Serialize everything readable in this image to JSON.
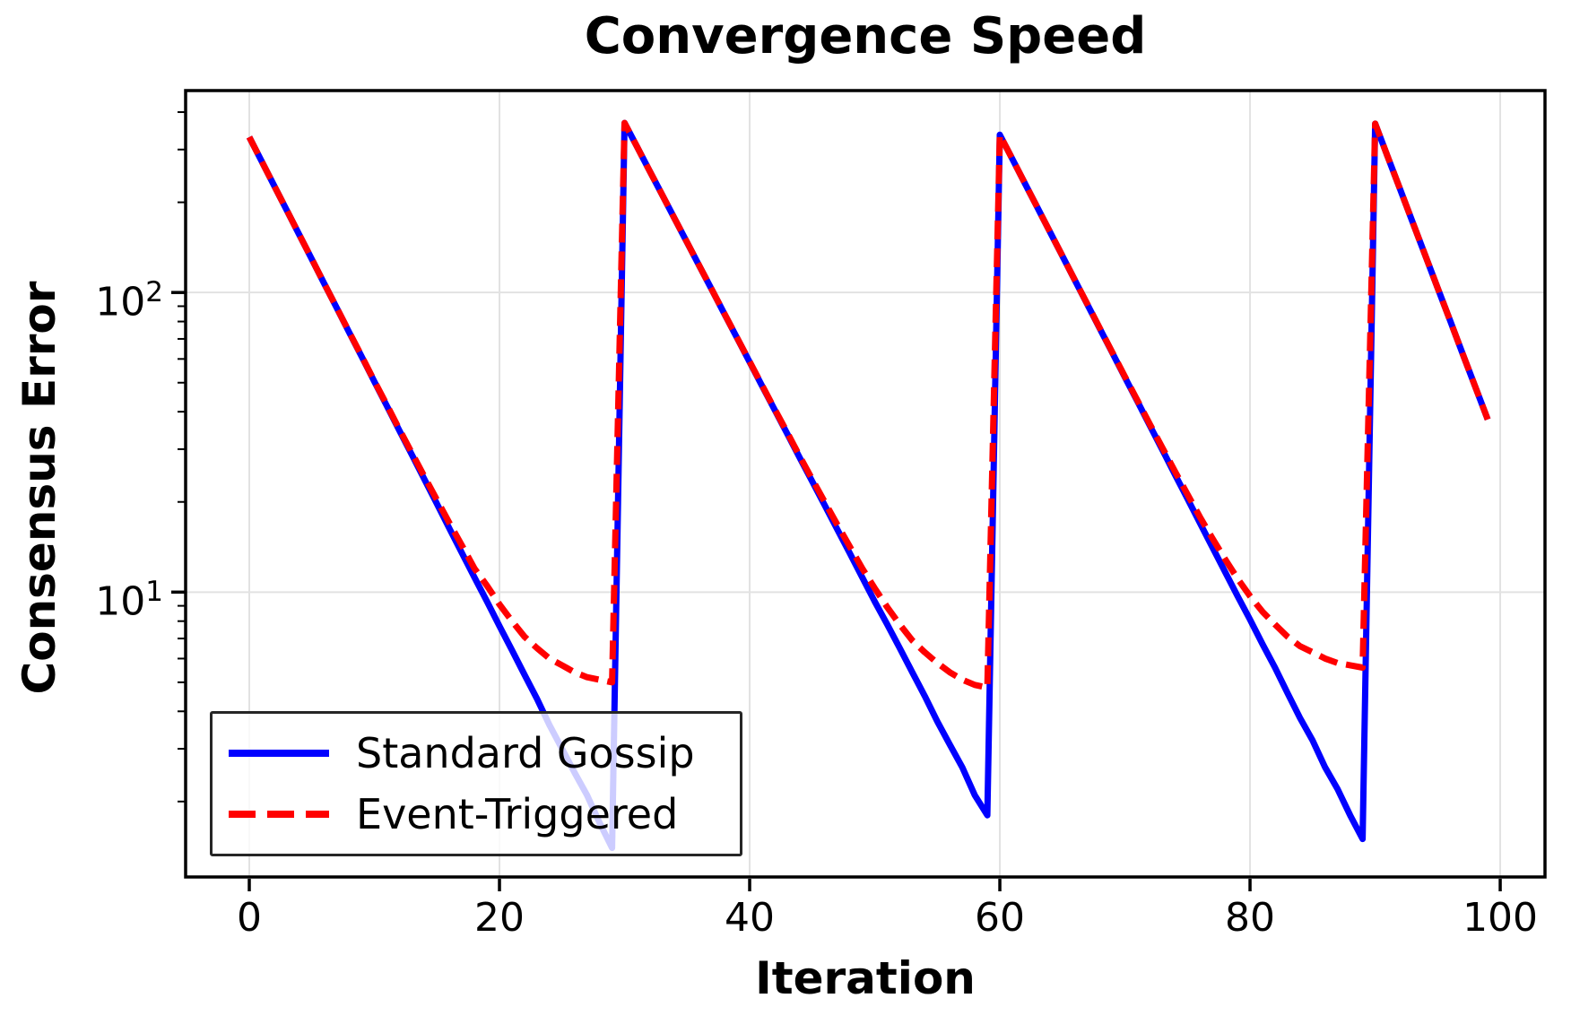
{
  "chart_data": {
    "type": "line",
    "title": "Convergence Speed",
    "xlabel": "Iteration",
    "ylabel": "Consensus Error",
    "yscale": "log",
    "grid": true,
    "legend_position": "lower-left",
    "xlim": [
      -5.09,
      103.58
    ],
    "ylim": [
      1.12,
      472
    ],
    "x_ticks": [
      0,
      20,
      40,
      60,
      80,
      100
    ],
    "y_ticks": [
      {
        "value": 10,
        "base": "10",
        "exp": "1"
      },
      {
        "value": 100,
        "base": "10",
        "exp": "2"
      }
    ],
    "grid_color": "#e2e2e2",
    "x": [
      0,
      1,
      2,
      3,
      4,
      5,
      6,
      7,
      8,
      9,
      10,
      11,
      12,
      13,
      14,
      15,
      16,
      17,
      18,
      19,
      20,
      21,
      22,
      23,
      24,
      25,
      26,
      27,
      28,
      29,
      30,
      31,
      32,
      33,
      34,
      35,
      36,
      37,
      38,
      39,
      40,
      41,
      42,
      43,
      44,
      45,
      46,
      47,
      48,
      49,
      50,
      51,
      52,
      53,
      54,
      55,
      56,
      57,
      58,
      59,
      60,
      61,
      62,
      63,
      64,
      65,
      66,
      67,
      68,
      69,
      70,
      71,
      72,
      73,
      74,
      75,
      76,
      77,
      78,
      79,
      80,
      81,
      82,
      83,
      84,
      85,
      86,
      87,
      88,
      89,
      90,
      91,
      92,
      93,
      94,
      95,
      96,
      97,
      98,
      99
    ],
    "series": [
      {
        "name": "Standard Gossip",
        "color": "#0000ff",
        "style": "solid",
        "values": [
          330,
          273.5,
          226.7,
          187.9,
          155.7,
          129,
          106.9,
          88.6,
          73.4,
          60.9,
          50.4,
          41.8,
          34.6,
          28.7,
          23.8,
          19.7,
          16.3,
          13.5,
          11.2,
          9.3,
          7.7,
          6.4,
          5.3,
          4.4,
          3.6,
          3,
          2.5,
          2.1,
          1.7,
          1.4,
          368,
          306.2,
          254.8,
          212,
          176.4,
          146.8,
          122.2,
          101.7,
          84.6,
          70.4,
          58.6,
          48.7,
          40.6,
          33.8,
          28.1,
          23.4,
          19.5,
          16.2,
          13.5,
          11.2,
          9.3,
          7.8,
          6.5,
          5.4,
          4.5,
          3.7,
          3.1,
          2.6,
          2.1,
          1.8,
          336,
          278.9,
          231.5,
          192.1,
          159.5,
          132.4,
          109.9,
          91.2,
          75.7,
          62.8,
          52.1,
          43.3,
          35.9,
          29.8,
          24.7,
          20.5,
          17,
          14.1,
          11.7,
          9.7,
          8.1,
          6.7,
          5.6,
          4.6,
          3.8,
          3.2,
          2.6,
          2.2,
          1.8,
          1.5,
          366,
          284.3,
          220.8,
          171.5,
          133.2,
          103.5,
          80.4,
          62.4,
          48.5,
          37.7
        ]
      },
      {
        "name": "Event-Triggered",
        "color": "#ff0000",
        "style": "dashed",
        "values": [
          330,
          273.5,
          226.8,
          188,
          155.8,
          129.1,
          107,
          88.7,
          73.6,
          61.1,
          50.6,
          42.1,
          34.9,
          29.1,
          24.3,
          20.3,
          17,
          14.3,
          12,
          10.5,
          9.1,
          8,
          7.1,
          6.5,
          6,
          5.7,
          5.4,
          5.2,
          5.1,
          5,
          368,
          306.2,
          254.8,
          212,
          176.5,
          146.9,
          122.3,
          101.8,
          84.7,
          70.5,
          58.8,
          48.9,
          40.8,
          34.1,
          28.4,
          23.8,
          20,
          16.8,
          14.2,
          12,
          10.3,
          8.9,
          7.8,
          6.9,
          6.3,
          5.8,
          5.4,
          5.1,
          4.9,
          4.8,
          336,
          278.9,
          231.6,
          192.2,
          159.6,
          132.5,
          110,
          91.4,
          75.9,
          63,
          52.4,
          43.6,
          36.3,
          30.3,
          25.3,
          21.2,
          17.8,
          15.1,
          12.9,
          11.1,
          9.7,
          8.6,
          7.8,
          7.1,
          6.6,
          6.3,
          6,
          5.8,
          5.7,
          5.6,
          366,
          284.3,
          220.8,
          171.5,
          133.2,
          103.5,
          80.4,
          62.4,
          48.5,
          37.7
        ]
      }
    ]
  }
}
